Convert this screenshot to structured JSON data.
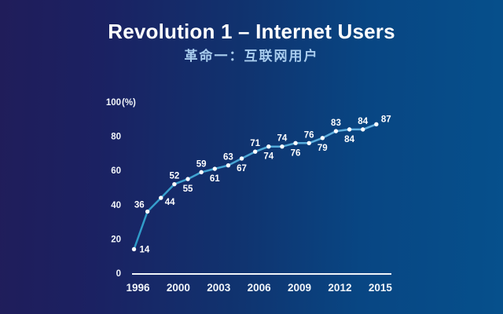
{
  "header": {
    "title": "Revolution 1 – Internet Users",
    "subtitle": "革命一：互联网用户"
  },
  "chart_data": {
    "type": "line",
    "title": "Revolution 1 – Internet Users",
    "subtitle_zh": "革命一：互联网用户",
    "unit": "%",
    "values": [
      14,
      36,
      44,
      52,
      55,
      59,
      61,
      63,
      67,
      71,
      74,
      74,
      76,
      76,
      79,
      83,
      84,
      84,
      87
    ],
    "value_label_positions": [
      "right",
      "left-above",
      "right-below",
      "above",
      "below",
      "above",
      "below",
      "above",
      "below",
      "above",
      "below",
      "above",
      "below",
      "above",
      "below",
      "above",
      "below",
      "above",
      "right-above"
    ],
    "x_ticks": [
      {
        "index": 0,
        "label": "1996"
      },
      {
        "index": 3,
        "label": "2000"
      },
      {
        "index": 6,
        "label": "2003"
      },
      {
        "index": 9,
        "label": "2006"
      },
      {
        "index": 12,
        "label": "2009"
      },
      {
        "index": 15,
        "label": "2012"
      },
      {
        "index": 18,
        "label": "2015"
      }
    ],
    "y_ticks": [
      {
        "value": 100,
        "label": "100",
        "suffix": "(%)"
      },
      {
        "value": 80,
        "label": "80"
      },
      {
        "value": 60,
        "label": "60"
      },
      {
        "value": 40,
        "label": "40"
      },
      {
        "value": 20,
        "label": "20"
      },
      {
        "value": 0,
        "label": "0"
      }
    ],
    "ylim": [
      0,
      100
    ],
    "grid": false,
    "legend": "none",
    "colors": {
      "background_left": "#201d5a",
      "background_right": "#06508c",
      "line_start": "#2d9bc8",
      "line_end": "#69b4e4",
      "dot": "#ffffff",
      "value_label": "#ffffff",
      "axis_line": "#f2f6fa",
      "tick_label": "#f2f6fa",
      "title": "#ffffff",
      "subtitle": "#a9cdee"
    }
  }
}
